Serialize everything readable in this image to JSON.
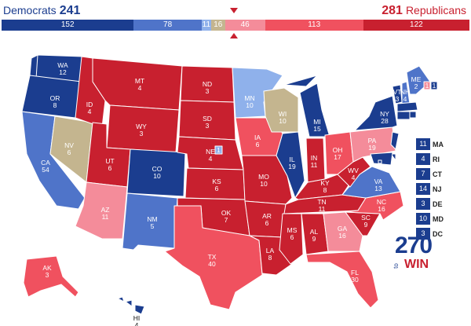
{
  "header": {
    "dem_label": "Democrats",
    "dem_total": "241",
    "rep_label": "Republicans",
    "rep_total": "281"
  },
  "colors": {
    "solid_d": "#1b3d8f",
    "likely_d": "#4f74c9",
    "lean_d": "#8fb1eb",
    "tossup": "#c4b58f",
    "lean_r": "#f48c9a",
    "likely_r": "#f0515f",
    "solid_r": "#c8202f"
  },
  "bar_segments": [
    {
      "label": "152",
      "value": 152,
      "cat": "solid_d"
    },
    {
      "label": "78",
      "value": 78,
      "cat": "likely_d"
    },
    {
      "label": "11",
      "value": 11,
      "cat": "lean_d"
    },
    {
      "label": "16",
      "value": 16,
      "cat": "tossup"
    },
    {
      "label": "46",
      "value": 46,
      "cat": "lean_r"
    },
    {
      "label": "113",
      "value": 113,
      "cat": "likely_r"
    },
    {
      "label": "122",
      "value": 122,
      "cat": "solid_r"
    }
  ],
  "states": [
    {
      "abbr": "WA",
      "ev": "12",
      "cat": "solid_d"
    },
    {
      "abbr": "OR",
      "ev": "8",
      "cat": "solid_d"
    },
    {
      "abbr": "CA",
      "ev": "54",
      "cat": "likely_d"
    },
    {
      "abbr": "NV",
      "ev": "6",
      "cat": "tossup"
    },
    {
      "abbr": "ID",
      "ev": "4",
      "cat": "solid_r"
    },
    {
      "abbr": "MT",
      "ev": "4",
      "cat": "solid_r"
    },
    {
      "abbr": "WY",
      "ev": "3",
      "cat": "solid_r"
    },
    {
      "abbr": "UT",
      "ev": "6",
      "cat": "solid_r"
    },
    {
      "abbr": "AZ",
      "ev": "11",
      "cat": "lean_r"
    },
    {
      "abbr": "CO",
      "ev": "10",
      "cat": "solid_d"
    },
    {
      "abbr": "NM",
      "ev": "5",
      "cat": "likely_d"
    },
    {
      "abbr": "ND",
      "ev": "3",
      "cat": "solid_r"
    },
    {
      "abbr": "SD",
      "ev": "3",
      "cat": "solid_r"
    },
    {
      "abbr": "NE",
      "ev": "4",
      "cat": "solid_r"
    },
    {
      "abbr": "KS",
      "ev": "6",
      "cat": "solid_r"
    },
    {
      "abbr": "OK",
      "ev": "7",
      "cat": "solid_r"
    },
    {
      "abbr": "TX",
      "ev": "40",
      "cat": "likely_r"
    },
    {
      "abbr": "MN",
      "ev": "10",
      "cat": "lean_d"
    },
    {
      "abbr": "IA",
      "ev": "6",
      "cat": "likely_r"
    },
    {
      "abbr": "MO",
      "ev": "10",
      "cat": "solid_r"
    },
    {
      "abbr": "AR",
      "ev": "6",
      "cat": "solid_r"
    },
    {
      "abbr": "LA",
      "ev": "8",
      "cat": "solid_r"
    },
    {
      "abbr": "WI",
      "ev": "10",
      "cat": "tossup"
    },
    {
      "abbr": "IL",
      "ev": "19",
      "cat": "solid_d"
    },
    {
      "abbr": "MI",
      "ev": "15",
      "cat": "solid_d"
    },
    {
      "abbr": "IN",
      "ev": "11",
      "cat": "solid_r"
    },
    {
      "abbr": "OH",
      "ev": "17",
      "cat": "likely_r"
    },
    {
      "abbr": "KY",
      "ev": "8",
      "cat": "solid_r"
    },
    {
      "abbr": "TN",
      "ev": "11",
      "cat": "solid_r"
    },
    {
      "abbr": "MS",
      "ev": "6",
      "cat": "solid_r"
    },
    {
      "abbr": "AL",
      "ev": "9",
      "cat": "solid_r"
    },
    {
      "abbr": "GA",
      "ev": "16",
      "cat": "lean_r"
    },
    {
      "abbr": "FL",
      "ev": "30",
      "cat": "likely_r"
    },
    {
      "abbr": "SC",
      "ev": "9",
      "cat": "solid_r"
    },
    {
      "abbr": "NC",
      "ev": "16",
      "cat": "likely_r"
    },
    {
      "abbr": "VA",
      "ev": "13",
      "cat": "likely_d"
    },
    {
      "abbr": "WV",
      "ev": "4",
      "cat": "solid_r"
    },
    {
      "abbr": "PA",
      "ev": "19",
      "cat": "lean_r"
    },
    {
      "abbr": "NY",
      "ev": "28",
      "cat": "solid_d"
    },
    {
      "abbr": "VT",
      "ev": "3",
      "cat": "solid_d"
    },
    {
      "abbr": "NH",
      "ev": "4",
      "cat": "likely_d"
    },
    {
      "abbr": "ME",
      "ev": "2",
      "cat": "likely_d"
    },
    {
      "abbr": "AK",
      "ev": "3",
      "cat": "likely_r"
    },
    {
      "abbr": "HI",
      "ev": "4",
      "cat": "solid_d"
    }
  ],
  "me_districts": [
    "1",
    "1"
  ],
  "ne_district": "1",
  "small_states": [
    {
      "abbr": "MA",
      "ev": "11"
    },
    {
      "abbr": "RI",
      "ev": "4"
    },
    {
      "abbr": "CT",
      "ev": "7"
    },
    {
      "abbr": "NJ",
      "ev": "14"
    },
    {
      "abbr": "DE",
      "ev": "3"
    },
    {
      "abbr": "MD",
      "ev": "10"
    },
    {
      "abbr": "DC",
      "ev": "3"
    }
  ],
  "logo": {
    "number": "270",
    "to": "to",
    "win": "WIN"
  }
}
